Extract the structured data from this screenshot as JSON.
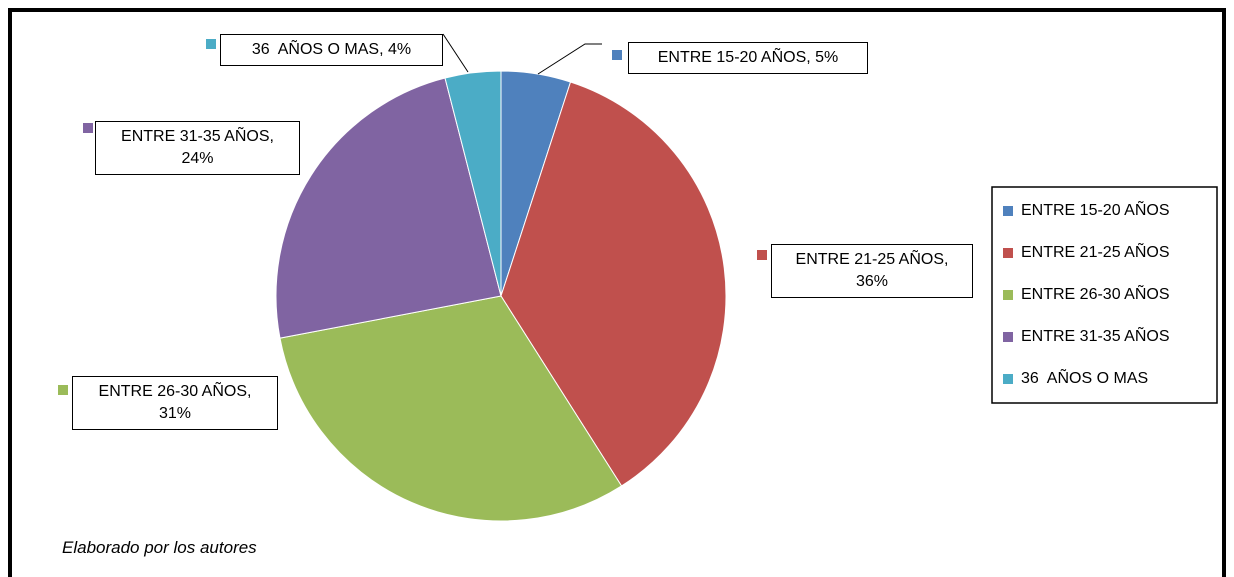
{
  "chart_data": {
    "type": "pie",
    "categories": [
      "ENTRE 15-20 AÑOS",
      "ENTRE 21-25 AÑOS",
      "ENTRE 26-30 AÑOS",
      "ENTRE 31-35 AÑOS",
      "36  AÑOS O MAS"
    ],
    "values": [
      5,
      36,
      31,
      24,
      4
    ],
    "value_labels": [
      "ENTRE 15-20 AÑOS, 5%",
      "ENTRE 21-25 AÑOS, 36%",
      "ENTRE 26-30 AÑOS, 31%",
      "ENTRE 31-35 AÑOS, 24%",
      "36  AÑOS O MAS, 4%"
    ],
    "colors": [
      "#4f81bd",
      "#c0504d",
      "#9bbb59",
      "#8064a2",
      "#4bacc6"
    ],
    "legend": "right",
    "source": "Elaborado por los autores"
  }
}
